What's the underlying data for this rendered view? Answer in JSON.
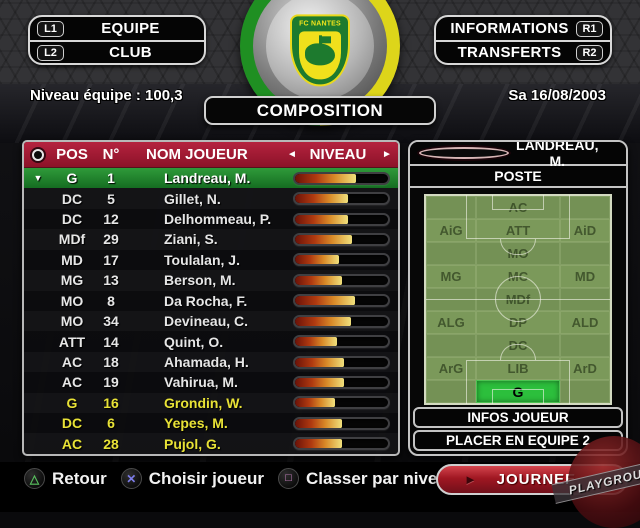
{
  "top_nav": {
    "left": [
      {
        "key": "L1",
        "label": "EQUIPE"
      },
      {
        "key": "L2",
        "label": "CLUB"
      }
    ],
    "right": [
      {
        "key": "R1",
        "label": "INFORMATIONS"
      },
      {
        "key": "R2",
        "label": "TRANSFERTS"
      }
    ]
  },
  "header": {
    "team_level": "Niveau équipe : 100,3",
    "screen_title": "COMPOSITION",
    "date": "Sa 16/08/2003",
    "club_crest": "FC NANTES"
  },
  "roster": {
    "columns": {
      "pos": "POS",
      "num": "N°",
      "name": "NOM JOUEUR",
      "level": "NIVEAU"
    },
    "sort_prev_icon": "◄",
    "sort_next_icon": "►",
    "selection_marker_icon": "▼",
    "players": [
      {
        "pos": "G",
        "num": "1",
        "name": "Landreau, M.",
        "level": 66
      },
      {
        "pos": "DC",
        "num": "5",
        "name": "Gillet, N.",
        "level": 57
      },
      {
        "pos": "DC",
        "num": "12",
        "name": "Delhommeau, P.",
        "level": 57
      },
      {
        "pos": "MDf",
        "num": "29",
        "name": "Ziani, S.",
        "level": 61
      },
      {
        "pos": "MD",
        "num": "17",
        "name": "Toulalan, J.",
        "level": 47
      },
      {
        "pos": "MG",
        "num": "13",
        "name": "Berson, M.",
        "level": 50
      },
      {
        "pos": "MO",
        "num": "8",
        "name": "Da Rocha, F.",
        "level": 65
      },
      {
        "pos": "MO",
        "num": "34",
        "name": "Devineau, C.",
        "level": 60
      },
      {
        "pos": "ATT",
        "num": "14",
        "name": "Quint, O.",
        "level": 45
      },
      {
        "pos": "AC",
        "num": "18",
        "name": "Ahamada, H.",
        "level": 53
      },
      {
        "pos": "AC",
        "num": "19",
        "name": "Vahirua, M.",
        "level": 53
      },
      {
        "pos": "G",
        "num": "16",
        "name": "Grondin, W.",
        "level": 43
      },
      {
        "pos": "DC",
        "num": "6",
        "name": "Yepes, M.",
        "level": 50
      },
      {
        "pos": "AC",
        "num": "28",
        "name": "Pujol, G.",
        "level": 50
      }
    ]
  },
  "player_panel": {
    "selected_name": "LANDREAU, M.",
    "poste_title": "POSTE",
    "info_button": "INFOS JOUEUR",
    "place_button": "PLACER EN EQUIPE 2"
  },
  "pitch": {
    "rows": [
      {
        "left": "",
        "center": "AC",
        "right": ""
      },
      {
        "left": "AiG",
        "center": "ATT",
        "right": "AiD"
      },
      {
        "left": "",
        "center": "MO",
        "right": ""
      },
      {
        "left": "MG",
        "center": "MC",
        "right": "MD"
      },
      {
        "left": "",
        "center": "MDf",
        "right": ""
      },
      {
        "left": "ALG",
        "center": "DP",
        "right": "ALD"
      },
      {
        "left": "",
        "center": "DC",
        "right": ""
      },
      {
        "left": "ArG",
        "center": "LIB",
        "right": "ArD"
      },
      {
        "left": "",
        "center": "G",
        "right": ""
      }
    ]
  },
  "controls": {
    "actions": [
      {
        "icon": "triangle",
        "glyph": "△",
        "label": "Retour"
      },
      {
        "icon": "cross",
        "glyph": "✕",
        "label": "Choisir joueur"
      },
      {
        "icon": "square",
        "glyph": "□",
        "label": "Classer par niveau"
      }
    ],
    "next_button": {
      "arrow": "►",
      "label": "JOURNEE"
    }
  },
  "watermark": {
    "text": "PLAYGROUND"
  },
  "colors": {
    "header_red": "#9e1b32",
    "selected_green": "#1f7d28",
    "sub_yellow": "#e8e236",
    "pitch_green": "#7b995a",
    "highlight_green": "#2cbf3c",
    "ring_green": "#1f8f22",
    "ring_yellow": "#ddd51a"
  }
}
